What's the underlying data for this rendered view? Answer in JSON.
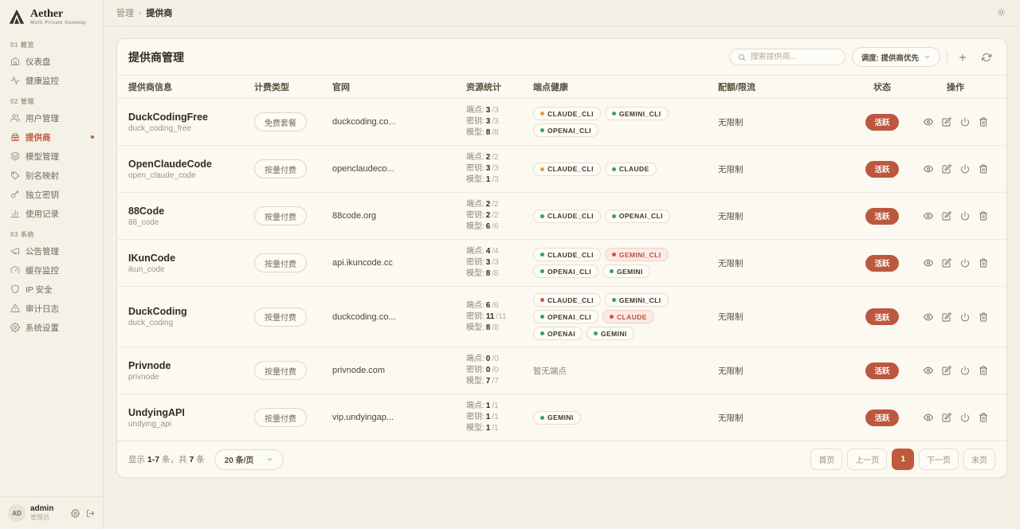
{
  "brand": {
    "name": "Aether",
    "tagline": "Multi Private Gateway"
  },
  "topbar": {
    "breadcrumb_parent": "管理",
    "breadcrumb_separator": "›",
    "breadcrumb_current": "提供商"
  },
  "sidebar": {
    "sections": [
      {
        "label": "01 概览",
        "items": [
          {
            "key": "dashboard",
            "icon": "home",
            "label": "仪表盘"
          },
          {
            "key": "health-monitor",
            "icon": "activity",
            "label": "健康监控"
          }
        ]
      },
      {
        "label": "02 管理",
        "items": [
          {
            "key": "user-management",
            "icon": "users",
            "label": "用户管理"
          },
          {
            "key": "providers",
            "icon": "building",
            "label": "提供商",
            "active": true
          },
          {
            "key": "model-management",
            "icon": "layers",
            "label": "模型管理"
          },
          {
            "key": "alias-mapping",
            "icon": "tag",
            "label": "别名映射"
          },
          {
            "key": "independent-keys",
            "icon": "key",
            "label": "独立密钥"
          },
          {
            "key": "usage-records",
            "icon": "bar-chart",
            "label": "使用记录"
          }
        ]
      },
      {
        "label": "03 系统",
        "items": [
          {
            "key": "announcements",
            "icon": "megaphone",
            "label": "公告管理"
          },
          {
            "key": "cache-monitor",
            "icon": "gauge",
            "label": "缓存监控"
          },
          {
            "key": "ip-security",
            "icon": "shield",
            "label": "IP 安全"
          },
          {
            "key": "audit-logs",
            "icon": "alert-triangle",
            "label": "审计日志"
          },
          {
            "key": "system-settings",
            "icon": "settings",
            "label": "系统设置"
          }
        ]
      }
    ],
    "user": {
      "initials": "AD",
      "name": "admin",
      "role": "管理员"
    }
  },
  "card": {
    "title": "提供商管理",
    "search_placeholder": "搜索提供商...",
    "sort_label": "调度: 提供商优先"
  },
  "table": {
    "headers": [
      "提供商信息",
      "计费类型",
      "官网",
      "资源统计",
      "端点健康",
      "配额/限流",
      "状态",
      "操作"
    ],
    "stats_labels": {
      "endpoints": "端点:",
      "keys": "密钥:",
      "models": "模型:"
    },
    "empty_health": "暂无端点",
    "action_icons": [
      "view",
      "edit",
      "power",
      "delete"
    ],
    "rows": [
      {
        "name": "DuckCodingFree",
        "code": "duck_coding_free",
        "billing": "免费套餐",
        "website": "duckcoding.co...",
        "stats": {
          "endpoints": [
            "3",
            "/3"
          ],
          "keys": [
            "3",
            "/3"
          ],
          "models": [
            "8",
            "/8"
          ]
        },
        "health": [
          {
            "label": "CLAUDE_CLI",
            "dot": "orange"
          },
          {
            "label": "GEMINI_CLI",
            "dot": "green"
          },
          {
            "label": "OPENAI_CLI",
            "dot": "green"
          }
        ],
        "quota": "无限制",
        "status": "活跃"
      },
      {
        "name": "OpenClaudeCode",
        "code": "open_claude_code",
        "billing": "按量付费",
        "website": "openclaudeco...",
        "stats": {
          "endpoints": [
            "2",
            "/2"
          ],
          "keys": [
            "3",
            "/3"
          ],
          "models": [
            "1",
            "/3"
          ]
        },
        "health": [
          {
            "label": "CLAUDE_CLI",
            "dot": "orange"
          },
          {
            "label": "CLAUDE",
            "dot": "green"
          }
        ],
        "quota": "无限制",
        "status": "活跃"
      },
      {
        "name": "88Code",
        "code": "88_code",
        "billing": "按量付费",
        "website": "88code.org",
        "stats": {
          "endpoints": [
            "2",
            "/2"
          ],
          "keys": [
            "2",
            "/2"
          ],
          "models": [
            "6",
            "/6"
          ]
        },
        "health": [
          {
            "label": "CLAUDE_CLI",
            "dot": "green"
          },
          {
            "label": "OPENAI_CLI",
            "dot": "green"
          }
        ],
        "quota": "无限制",
        "status": "活跃"
      },
      {
        "name": "IKunCode",
        "code": "ikun_code",
        "billing": "按量付费",
        "website": "api.ikuncode.cc",
        "stats": {
          "endpoints": [
            "4",
            "/4"
          ],
          "keys": [
            "3",
            "/3"
          ],
          "models": [
            "8",
            "/8"
          ]
        },
        "health": [
          {
            "label": "CLAUDE_CLI",
            "dot": "green"
          },
          {
            "label": "GEMINI_CLI",
            "dot": "red",
            "variant": "danger"
          },
          {
            "label": "OPENAI_CLI",
            "dot": "green"
          },
          {
            "label": "GEMINI",
            "dot": "green"
          }
        ],
        "quota": "无限制",
        "status": "活跃"
      },
      {
        "name": "DuckCoding",
        "code": "duck_coding",
        "billing": "按量付费",
        "website": "duckcoding.co...",
        "stats": {
          "endpoints": [
            "6",
            "/6"
          ],
          "keys": [
            "11",
            "/11"
          ],
          "models": [
            "8",
            "/8"
          ]
        },
        "health": [
          {
            "label": "CLAUDE_CLI",
            "dot": "red"
          },
          {
            "label": "GEMINI_CLI",
            "dot": "green"
          },
          {
            "label": "OPENAI_CLI",
            "dot": "green"
          },
          {
            "label": "CLAUDE",
            "dot": "red",
            "variant": "danger"
          },
          {
            "label": "OPENAI",
            "dot": "green"
          },
          {
            "label": "GEMINI",
            "dot": "green"
          }
        ],
        "quota": "无限制",
        "status": "活跃"
      },
      {
        "name": "Privnode",
        "code": "privnode",
        "billing": "按量付费",
        "website": "privnode.com",
        "stats": {
          "endpoints": [
            "0",
            "/0"
          ],
          "keys": [
            "0",
            "/0"
          ],
          "models": [
            "7",
            "/7"
          ]
        },
        "health": [],
        "quota": "无限制",
        "status": "活跃"
      },
      {
        "name": "UndyingAPI",
        "code": "undying_api",
        "billing": "按量付费",
        "website": "vip.undyingap...",
        "stats": {
          "endpoints": [
            "1",
            "/1"
          ],
          "keys": [
            "1",
            "/1"
          ],
          "models": [
            "1",
            "/1"
          ]
        },
        "health": [
          {
            "label": "GEMINI",
            "dot": "green"
          }
        ],
        "quota": "无限制",
        "status": "活跃"
      }
    ]
  },
  "footer": {
    "showing_prefix": "显示",
    "showing_range": "1-7",
    "showing_mid": "条，共",
    "showing_total": "7",
    "showing_suffix": "条",
    "page_size": "20 条/页",
    "pages": [
      {
        "key": "first",
        "label": "首页"
      },
      {
        "key": "prev",
        "label": "上一页"
      },
      {
        "key": "page-1",
        "label": "1",
        "active": true
      },
      {
        "key": "next",
        "label": "下一页"
      },
      {
        "key": "last",
        "label": "末页"
      }
    ]
  }
}
